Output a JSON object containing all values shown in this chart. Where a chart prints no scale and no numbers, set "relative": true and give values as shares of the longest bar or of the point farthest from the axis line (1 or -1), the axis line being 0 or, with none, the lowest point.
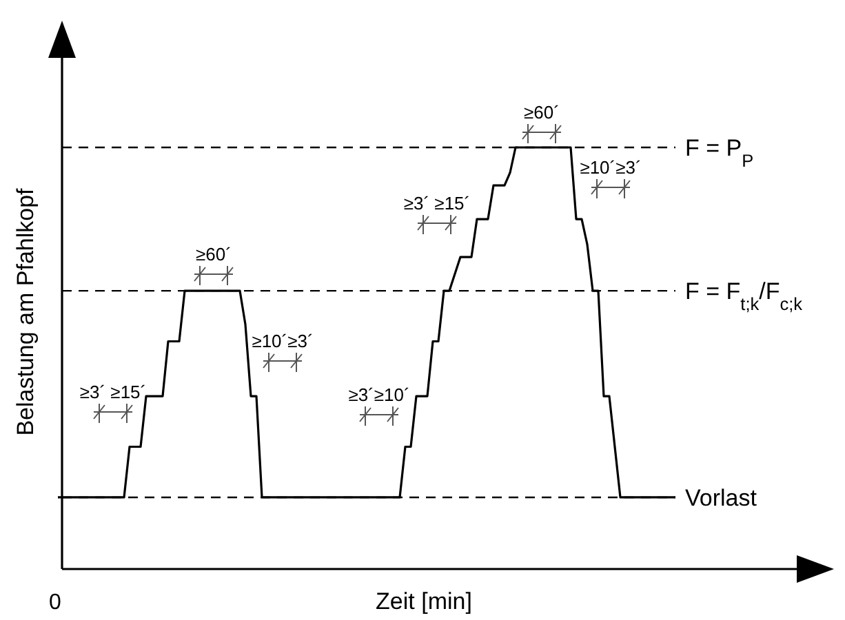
{
  "chart_data": {
    "type": "line",
    "relative": true,
    "xlabel": "Zeit [min]",
    "ylabel": "Belastung am Pfahlkopf",
    "categories": [
      null,
      null,
      null,
      null,
      null,
      null,
      null,
      null,
      null,
      null,
      null,
      null,
      null,
      null,
      null,
      null,
      null,
      null,
      null,
      null,
      null,
      null,
      null,
      null,
      null,
      null,
      null,
      null,
      null,
      null,
      null,
      null,
      null,
      null,
      null,
      null,
      null,
      null,
      null,
      null,
      null,
      null,
      null,
      null,
      null,
      null,
      null,
      null,
      null,
      null,
      null,
      null,
      null,
      null,
      null,
      null,
      null,
      null,
      null,
      null,
      null,
      null,
      null,
      null,
      null,
      null,
      null,
      null,
      null,
      null,
      null,
      null,
      null,
      null,
      null,
      null,
      null,
      null,
      null,
      null,
      null,
      null,
      null,
      null,
      null,
      null,
      null,
      null,
      null,
      null,
      null,
      null,
      null,
      null,
      null,
      null,
      null,
      null,
      null,
      null,
      null,
      null,
      null,
      null,
      null,
      null,
      null,
      null,
      null,
      null,
      null,
      null,
      null
    ],
    "series": [
      {
        "color": "#000000",
        "values": [
          0.17,
          0.17,
          0.17,
          0.17,
          0.17,
          0.17,
          0.17,
          0.17,
          0.17,
          0.17,
          0.17,
          0.17,
          0.17,
          0.29,
          0.29,
          0.29,
          0.41,
          0.41,
          0.41,
          0.41,
          0.54,
          0.54,
          0.54,
          0.66,
          0.66,
          0.66,
          0.66,
          0.66,
          0.66,
          0.66,
          0.66,
          0.66,
          0.66,
          0.66,
          0.58,
          0.41,
          0.41,
          0.17,
          0.17,
          0.17,
          0.17,
          0.17,
          0.17,
          0.17,
          0.17,
          0.17,
          0.17,
          0.17,
          0.17,
          0.17,
          0.17,
          0.17,
          0.17,
          0.17,
          0.17,
          0.17,
          0.17,
          0.17,
          0.17,
          0.17,
          0.17,
          0.17,
          0.17,
          0.29,
          0.29,
          0.41,
          0.41,
          0.41,
          0.54,
          0.54,
          0.66,
          0.66,
          0.7,
          0.74,
          0.74,
          0.74,
          0.83,
          0.83,
          0.83,
          0.91,
          0.91,
          0.91,
          0.94,
          1,
          1,
          1,
          1,
          1,
          1,
          1,
          1,
          1,
          1,
          1,
          0.83,
          0.83,
          0.77,
          0.66,
          0.66,
          0.41,
          0.41,
          0.29,
          0.17,
          0.17,
          0.17,
          0.17,
          0.17,
          0.17,
          0.17,
          0.17,
          0.17,
          0.17,
          0.17
        ]
      }
    ],
    "ref_lines": [
      {
        "axis": "y",
        "value": 1,
        "label": "F = P$_{P}$",
        "line_style": "dashed"
      },
      {
        "axis": "y",
        "value": 0.66,
        "label": "F = F$_{t;k}$/F$_{c;k}$",
        "line_style": "dashed"
      },
      {
        "axis": "y",
        "value": 0.17,
        "label": "Vorlast",
        "line_style": "dashed"
      }
    ],
    "annotations": [
      "0",
      "≥3´ ≥15´",
      "≥60´",
      "≥10´≥3´",
      "≥3´≥10´",
      "≥3´ ≥15´",
      "≥60´",
      "≥10´≥3´"
    ]
  }
}
